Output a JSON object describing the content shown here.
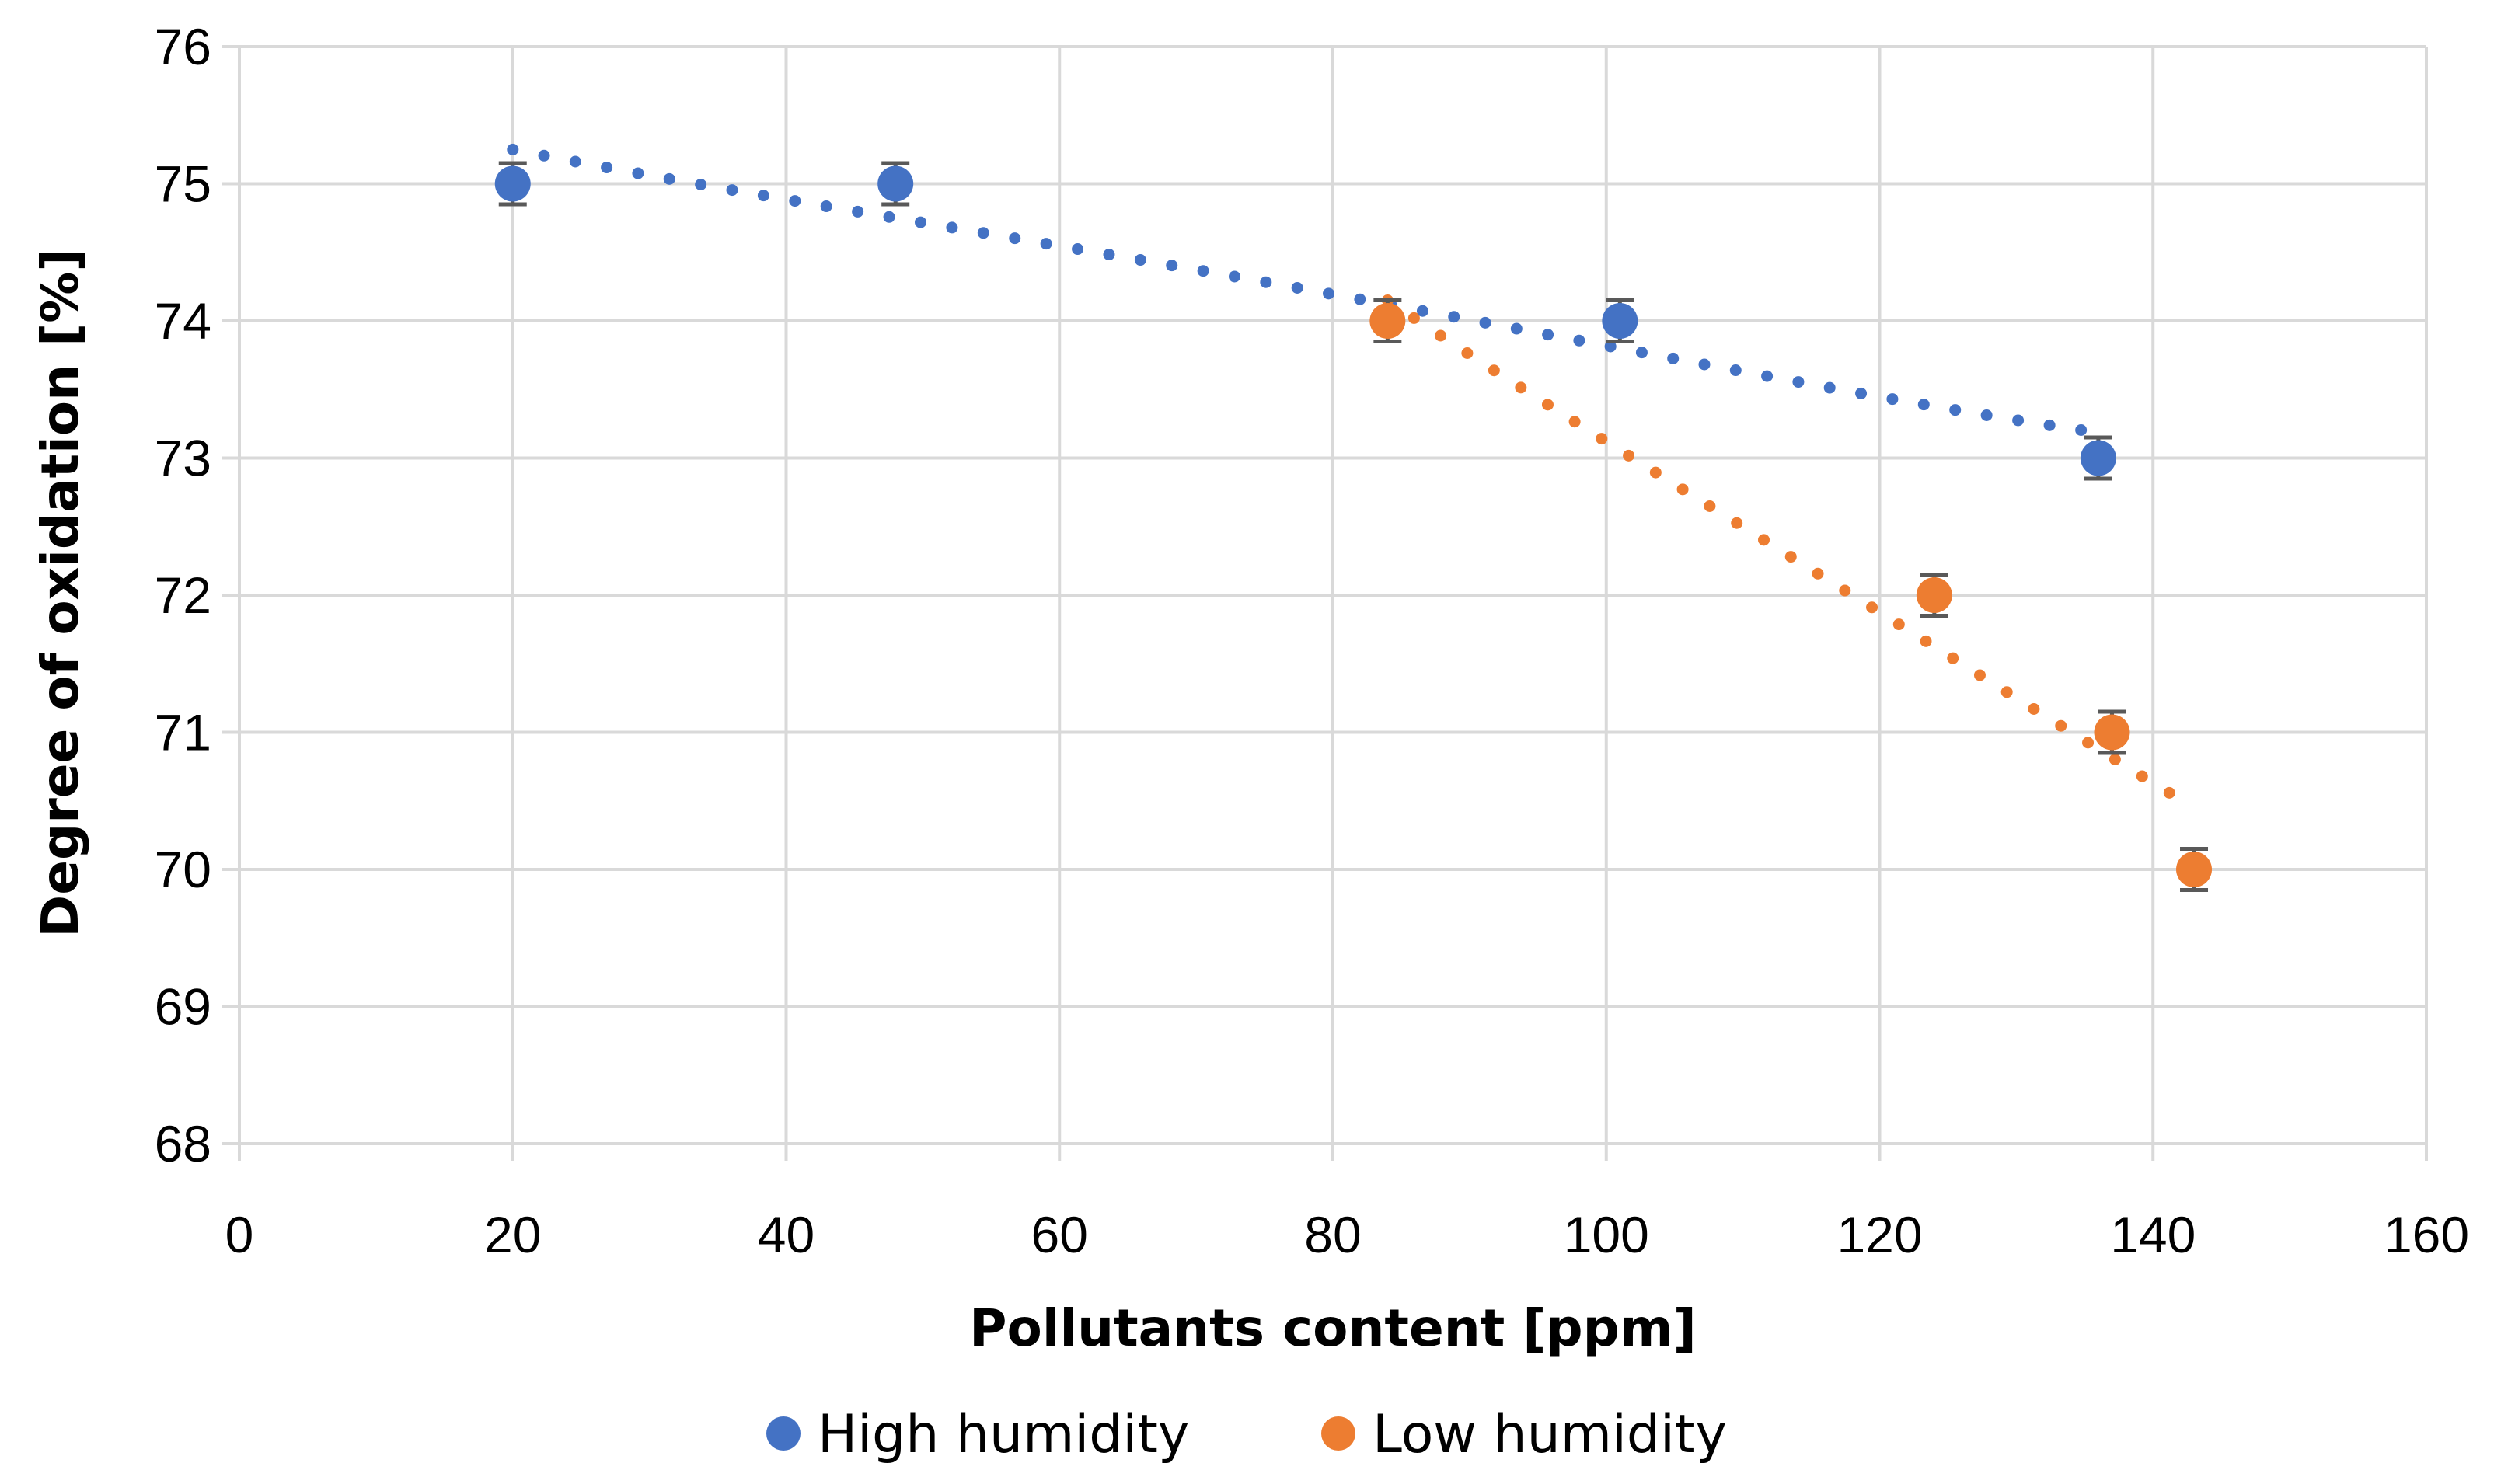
{
  "chart_data": {
    "type": "scatter",
    "title": "",
    "xlabel": "Pollutants content [ppm]",
    "ylabel": "Degree of oxidation [%]",
    "xlim": [
      0,
      160
    ],
    "ylim": [
      68,
      76
    ],
    "x_ticks": [
      "0",
      "20",
      "40",
      "60",
      "80",
      "100",
      "120",
      "140",
      "160"
    ],
    "y_ticks": [
      "68",
      "69",
      "70",
      "71",
      "72",
      "73",
      "74",
      "75",
      "76"
    ],
    "grid": true,
    "legend_position": "bottom",
    "error_bar": 0.15,
    "series": [
      {
        "name": "High humidity",
        "color": "#4472C4",
        "x": [
          20,
          48,
          101,
          136
        ],
        "y": [
          75,
          75,
          74,
          73
        ],
        "trendline": {
          "type": "polynomial",
          "x_start": 20,
          "x_end": 135,
          "x_points": [
            20,
            48,
            84,
            101,
            135
          ],
          "y_points": [
            75.25,
            74.75,
            74.12,
            73.8,
            73.2
          ]
        }
      },
      {
        "name": "Low humidity",
        "color": "#ED7D31",
        "x": [
          84,
          124,
          137,
          143
        ],
        "y": [
          74,
          72,
          71,
          70
        ],
        "trendline": {
          "type": "polynomial",
          "x_start": 84,
          "x_end": 142.5,
          "x_points": [
            84,
            100,
            118,
            130,
            142.5
          ],
          "y_points": [
            74.15,
            73.12,
            72.0,
            71.25,
            70.48
          ]
        }
      }
    ]
  }
}
